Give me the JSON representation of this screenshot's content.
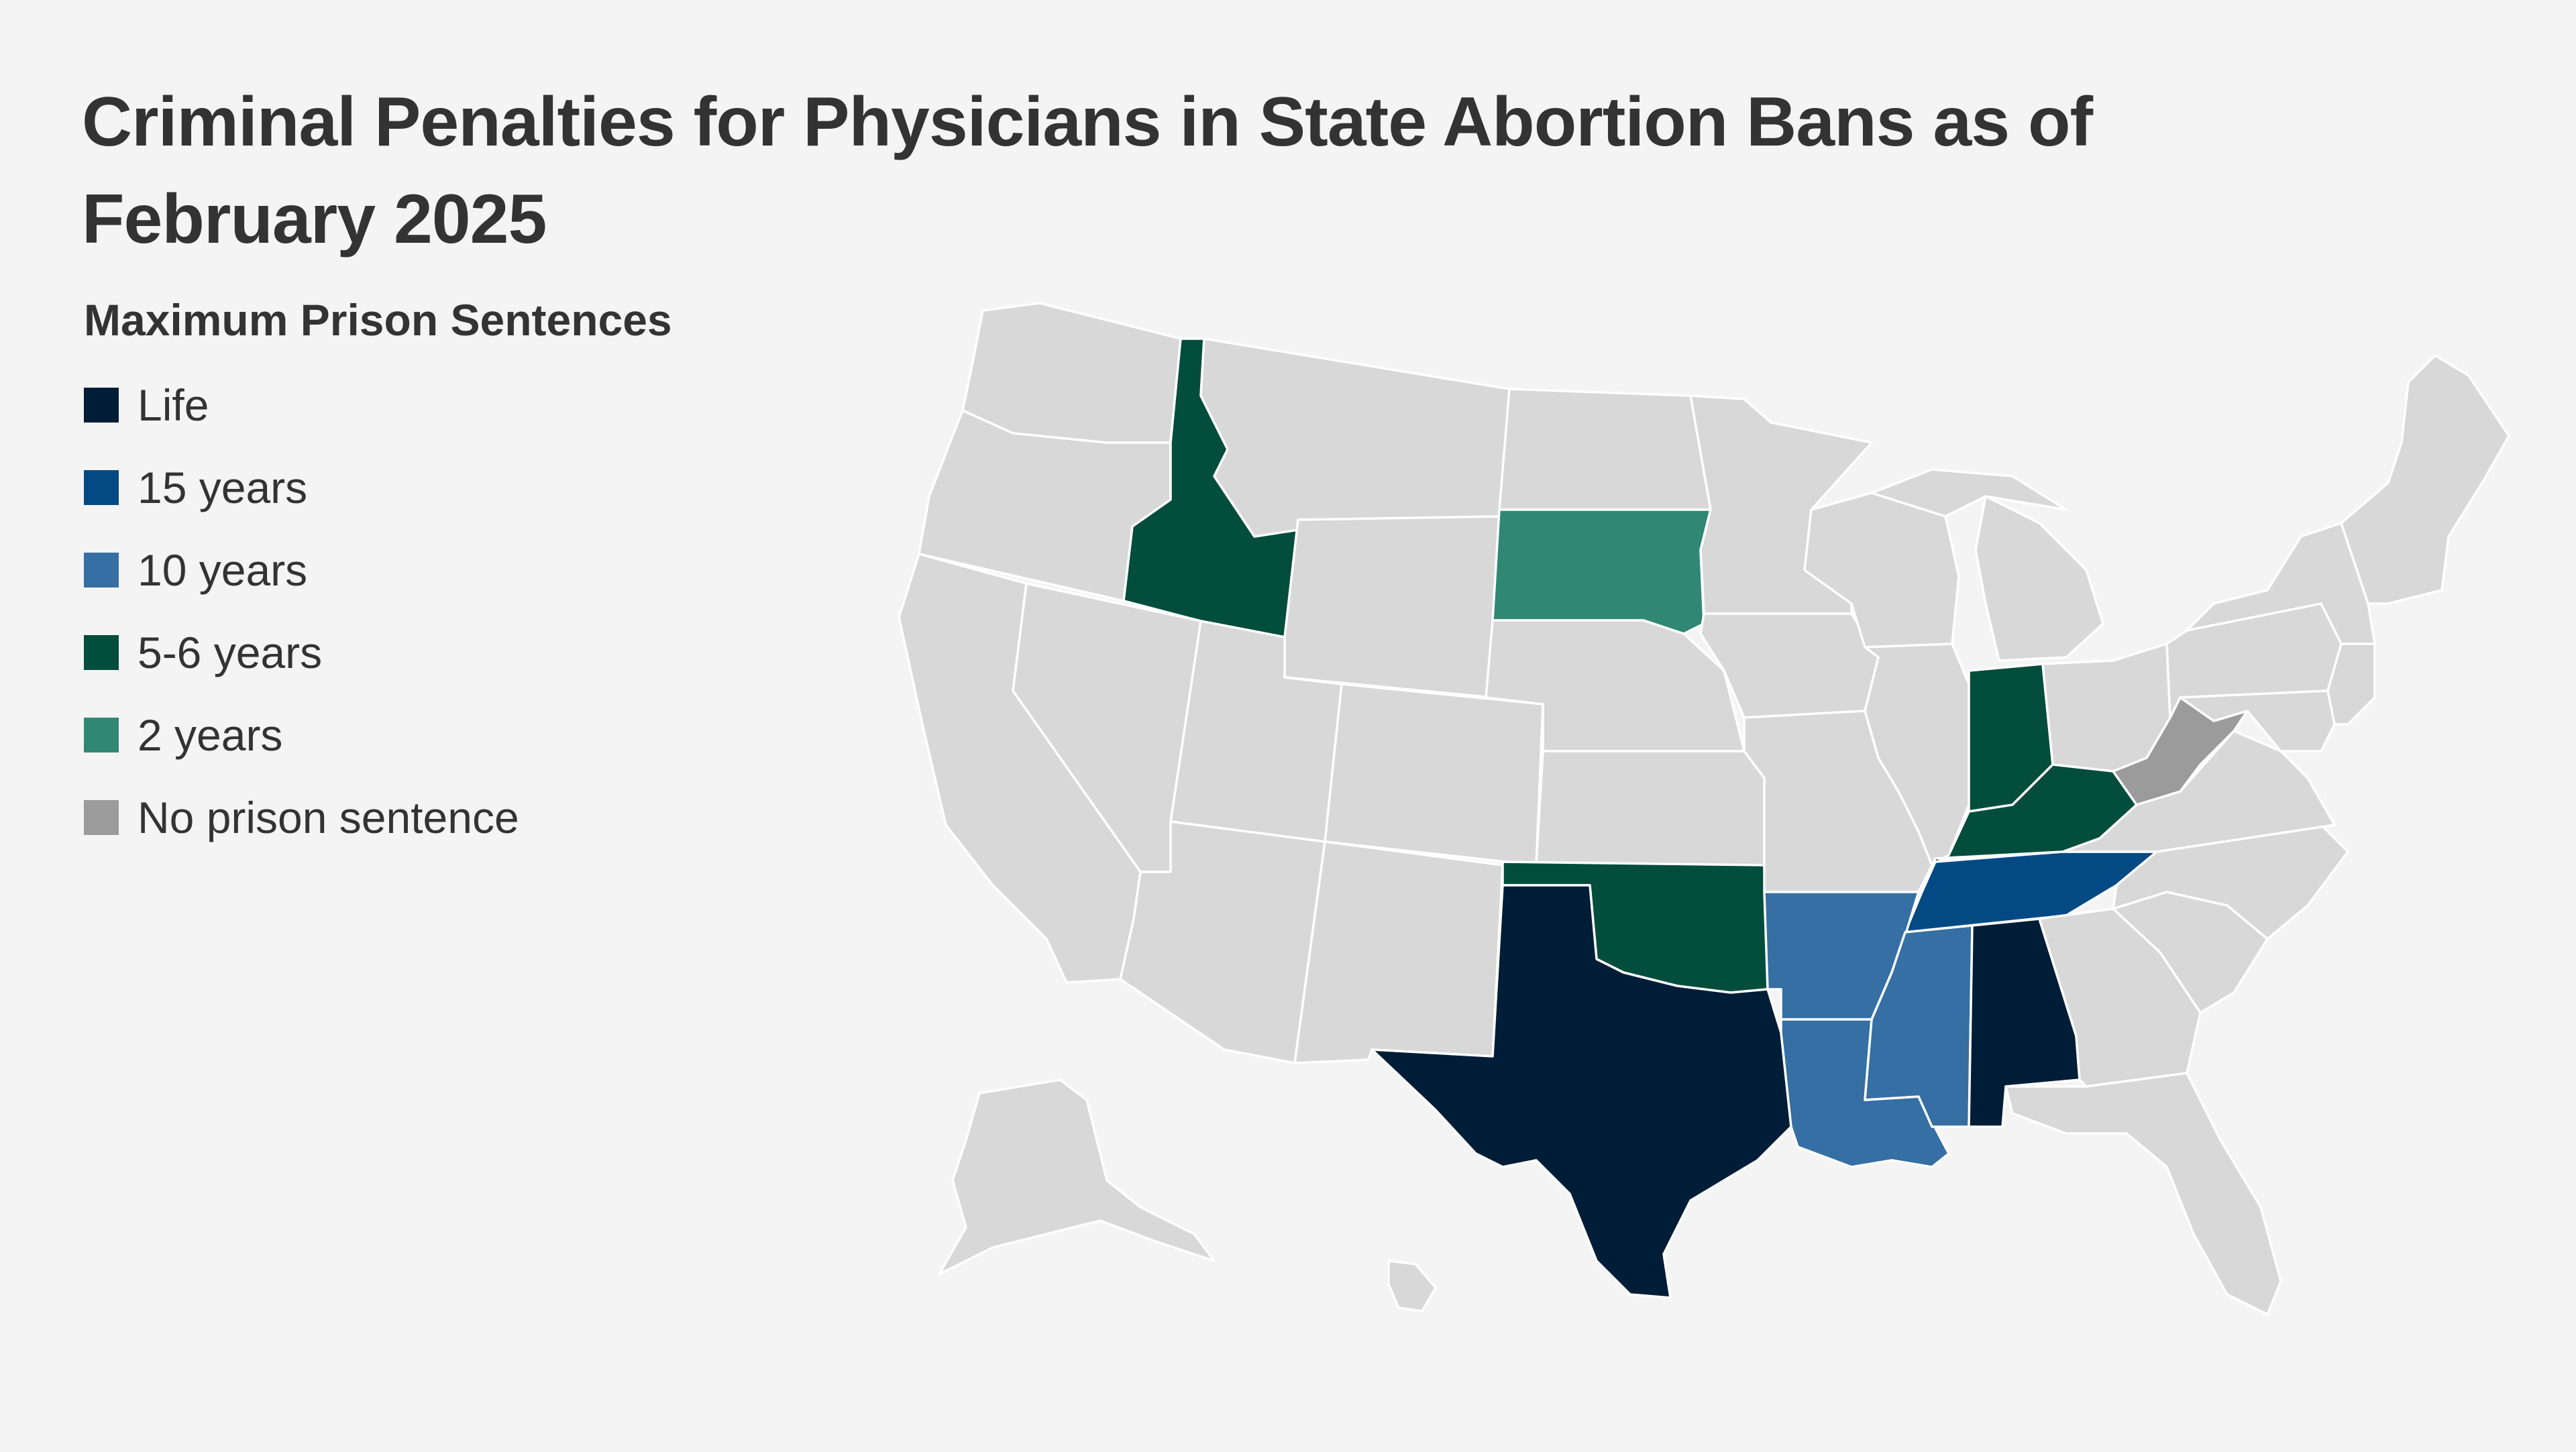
{
  "title": "Criminal Penalties for Physicians in State Abortion Bans as of February 2025",
  "legend": {
    "title": "Maximum Prison Sentences",
    "items": [
      {
        "label": "Life",
        "color": "#001d38"
      },
      {
        "label": "15 years",
        "color": "#034a85"
      },
      {
        "label": "10 years",
        "color": "#356fa3"
      },
      {
        "label": "5-6 years",
        "color": "#034d3c"
      },
      {
        "label": "2 years",
        "color": "#308774"
      },
      {
        "label": "No prison sentence",
        "color": "#9b9b9b"
      }
    ]
  },
  "colors": {
    "default_state": "#d8d8d8",
    "border": "#ffffff",
    "background": "#f4f4f4"
  },
  "states": {
    "Life": [
      "Texas",
      "Alabama"
    ],
    "15 years": [
      "Tennessee"
    ],
    "10 years": [
      "Arkansas",
      "Louisiana",
      "Mississippi"
    ],
    "5-6 years": [
      "Idaho",
      "Oklahoma",
      "Indiana",
      "Kentucky"
    ],
    "2 years": [
      "South Dakota"
    ],
    "No prison sentence": [
      "West Virginia"
    ]
  }
}
